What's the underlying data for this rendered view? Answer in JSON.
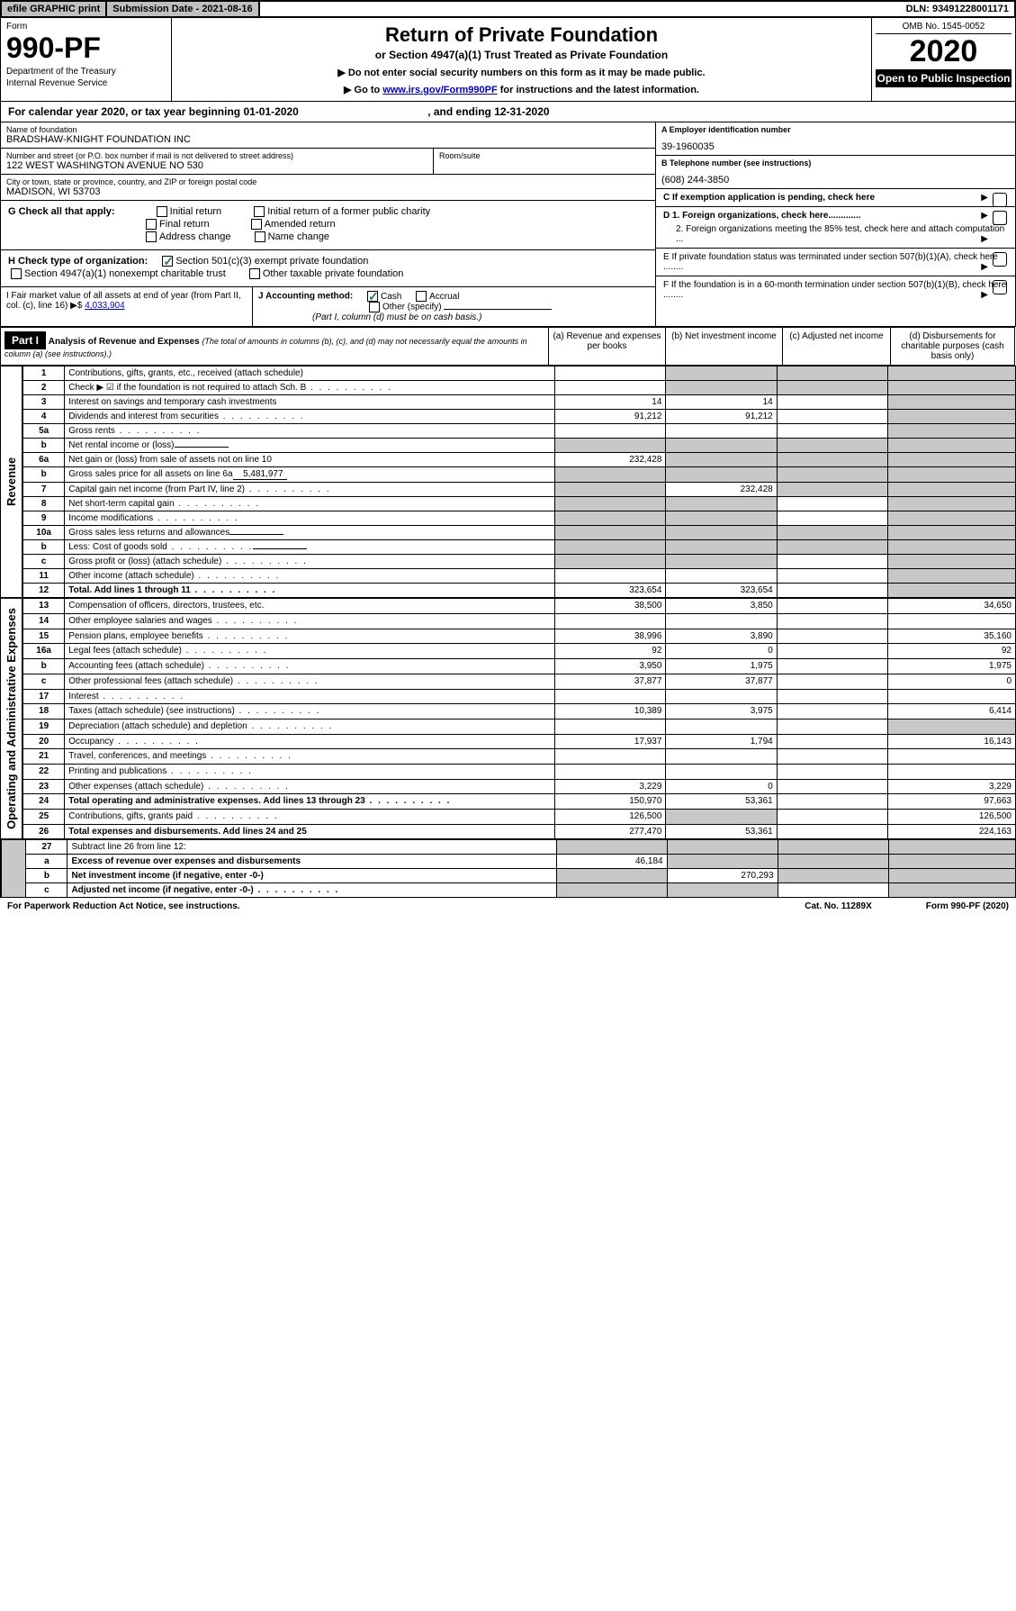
{
  "topbar": {
    "efile": "efile GRAPHIC print",
    "submission": "Submission Date - 2021-08-16",
    "dln": "DLN: 93491228001171"
  },
  "header": {
    "form_word": "Form",
    "form_num": "990-PF",
    "dept1": "Department of the Treasury",
    "dept2": "Internal Revenue Service",
    "title": "Return of Private Foundation",
    "subtitle": "or Section 4947(a)(1) Trust Treated as Private Foundation",
    "note1": "▶ Do not enter social security numbers on this form as it may be made public.",
    "note2_pre": "▶ Go to ",
    "note2_link": "www.irs.gov/Form990PF",
    "note2_post": " for instructions and the latest information.",
    "omb": "OMB No. 1545-0052",
    "year": "2020",
    "open": "Open to Public Inspection"
  },
  "calendar": {
    "pre": "For calendar year 2020, or tax year beginning ",
    "begin": "01-01-2020",
    "mid": " , and ending ",
    "end": "12-31-2020"
  },
  "name": {
    "lbl": "Name of foundation",
    "val": "BRADSHAW-KNIGHT FOUNDATION INC"
  },
  "ein": {
    "lbl": "A Employer identification number",
    "val": "39-1960035"
  },
  "addr": {
    "lbl": "Number and street (or P.O. box number if mail is not delivered to street address)",
    "val": "122 WEST WASHINGTON AVENUE NO 530",
    "room_lbl": "Room/suite"
  },
  "phone": {
    "lbl": "B Telephone number (see instructions)",
    "val": "(608) 244-3850"
  },
  "city": {
    "lbl": "City or town, state or province, country, and ZIP or foreign postal code",
    "val": "MADISON, WI  53703"
  },
  "boxC": "C If exemption application is pending, check here",
  "boxD1": "D 1. Foreign organizations, check here.............",
  "boxD2": "2. Foreign organizations meeting the 85% test, check here and attach computation ...",
  "boxE": "E  If private foundation status was terminated under section 507(b)(1)(A), check here ........",
  "boxF": "F  If the foundation is in a 60-month termination under section 507(b)(1)(B), check here ........",
  "G": {
    "lbl": "G Check all that apply:",
    "opts": [
      "Initial return",
      "Initial return of a former public charity",
      "Final return",
      "Amended return",
      "Address change",
      "Name change"
    ]
  },
  "H": {
    "lbl": "H Check type of organization:",
    "opt1": "Section 501(c)(3) exempt private foundation",
    "opt2": "Section 4947(a)(1) nonexempt charitable trust",
    "opt3": "Other taxable private foundation"
  },
  "I": {
    "lbl": "I Fair market value of all assets at end of year (from Part II, col. (c), line 16)",
    "arrow": "▶$",
    "val": "4,033,904"
  },
  "J": {
    "lbl": "J Accounting method:",
    "cash": "Cash",
    "accrual": "Accrual",
    "other": "Other (specify)",
    "note": "(Part I, column (d) must be on cash basis.)"
  },
  "part1": {
    "label": "Part I",
    "title": "Analysis of Revenue and Expenses",
    "subtitle": "(The total of amounts in columns (b), (c), and (d) may not necessarily equal the amounts in column (a) (see instructions).)",
    "cols": {
      "a": "(a) Revenue and expenses per books",
      "b": "(b) Net investment income",
      "c": "(c) Adjusted net income",
      "d": "(d) Disbursements for charitable purposes (cash basis only)"
    },
    "sidebar_rev": "Revenue",
    "sidebar_exp": "Operating and Administrative Expenses"
  },
  "rows": [
    {
      "n": "1",
      "d": "Contributions, gifts, grants, etc., received (attach schedule)",
      "a": "",
      "b": "",
      "gb": true,
      "gc": true,
      "gd": true
    },
    {
      "n": "2",
      "d": "Check ▶ ☑ if the foundation is not required to attach Sch. B",
      "dots": true,
      "gb": true,
      "gc": true,
      "gd": true
    },
    {
      "n": "3",
      "d": "Interest on savings and temporary cash investments",
      "a": "14",
      "b": "14",
      "gc": false,
      "gd": true
    },
    {
      "n": "4",
      "d": "Dividends and interest from securities",
      "dots": true,
      "a": "91,212",
      "b": "91,212",
      "gd": true
    },
    {
      "n": "5a",
      "d": "Gross rents",
      "dots": true,
      "gd": true
    },
    {
      "n": "b",
      "d": "Net rental income or (loss)",
      "inline": true,
      "ga": true,
      "gb": true,
      "gc": true,
      "gd": true
    },
    {
      "n": "6a",
      "d": "Net gain or (loss) from sale of assets not on line 10",
      "a": "232,428",
      "gb": true,
      "gc": true,
      "gd": true
    },
    {
      "n": "b",
      "d": "Gross sales price for all assets on line 6a",
      "inline": true,
      "inline_val": "5,481,977",
      "ga": true,
      "gb": true,
      "gc": true,
      "gd": true
    },
    {
      "n": "7",
      "d": "Capital gain net income (from Part IV, line 2)",
      "dots": true,
      "ga": true,
      "b": "232,428",
      "gc": true,
      "gd": true
    },
    {
      "n": "8",
      "d": "Net short-term capital gain",
      "dots": true,
      "ga": true,
      "gb": true,
      "gd": true
    },
    {
      "n": "9",
      "d": "Income modifications",
      "dots": true,
      "ga": true,
      "gb": true,
      "gd": true
    },
    {
      "n": "10a",
      "d": "Gross sales less returns and allowances",
      "inline": true,
      "ga": true,
      "gb": true,
      "gc": true,
      "gd": true
    },
    {
      "n": "b",
      "d": "Less: Cost of goods sold",
      "dots": true,
      "inline": true,
      "ga": true,
      "gb": true,
      "gc": true,
      "gd": true
    },
    {
      "n": "c",
      "d": "Gross profit or (loss) (attach schedule)",
      "dots": true,
      "ga": true,
      "gb": true,
      "gd": true
    },
    {
      "n": "11",
      "d": "Other income (attach schedule)",
      "dots": true,
      "gd": true
    },
    {
      "n": "12",
      "d": "Total. Add lines 1 through 11",
      "bold": true,
      "dots": true,
      "a": "323,654",
      "b": "323,654",
      "gd": true
    }
  ],
  "exp_rows": [
    {
      "n": "13",
      "d": "Compensation of officers, directors, trustees, etc.",
      "a": "38,500",
      "b": "3,850",
      "dd": "34,650"
    },
    {
      "n": "14",
      "d": "Other employee salaries and wages",
      "dots": true
    },
    {
      "n": "15",
      "d": "Pension plans, employee benefits",
      "dots": true,
      "a": "38,996",
      "b": "3,890",
      "dd": "35,160"
    },
    {
      "n": "16a",
      "d": "Legal fees (attach schedule)",
      "dots": true,
      "a": "92",
      "b": "0",
      "dd": "92"
    },
    {
      "n": "b",
      "d": "Accounting fees (attach schedule)",
      "dots": true,
      "a": "3,950",
      "b": "1,975",
      "dd": "1,975"
    },
    {
      "n": "c",
      "d": "Other professional fees (attach schedule)",
      "dots": true,
      "a": "37,877",
      "b": "37,877",
      "dd": "0"
    },
    {
      "n": "17",
      "d": "Interest",
      "dots": true
    },
    {
      "n": "18",
      "d": "Taxes (attach schedule) (see instructions)",
      "dots": true,
      "a": "10,389",
      "b": "3,975",
      "dd": "6,414"
    },
    {
      "n": "19",
      "d": "Depreciation (attach schedule) and depletion",
      "dots": true,
      "gd": true
    },
    {
      "n": "20",
      "d": "Occupancy",
      "dots": true,
      "a": "17,937",
      "b": "1,794",
      "dd": "16,143"
    },
    {
      "n": "21",
      "d": "Travel, conferences, and meetings",
      "dots": true
    },
    {
      "n": "22",
      "d": "Printing and publications",
      "dots": true
    },
    {
      "n": "23",
      "d": "Other expenses (attach schedule)",
      "dots": true,
      "a": "3,229",
      "b": "0",
      "dd": "3,229"
    },
    {
      "n": "24",
      "d": "Total operating and administrative expenses. Add lines 13 through 23",
      "bold": true,
      "dots": true,
      "a": "150,970",
      "b": "53,361",
      "dd": "97,663"
    },
    {
      "n": "25",
      "d": "Contributions, gifts, grants paid",
      "dots": true,
      "a": "126,500",
      "gb": true,
      "dd": "126,500"
    },
    {
      "n": "26",
      "d": "Total expenses and disbursements. Add lines 24 and 25",
      "bold": true,
      "a": "277,470",
      "b": "53,361",
      "dd": "224,163"
    }
  ],
  "final_rows": [
    {
      "n": "27",
      "d": "Subtract line 26 from line 12:",
      "ga": true,
      "gb": true,
      "gc": true,
      "gd": true
    },
    {
      "n": "a",
      "d": "Excess of revenue over expenses and disbursements",
      "bold": true,
      "a": "46,184",
      "gb": true,
      "gc": true,
      "gd": true
    },
    {
      "n": "b",
      "d": "Net investment income (if negative, enter -0-)",
      "bold": true,
      "ga": true,
      "b": "270,293",
      "gc": true,
      "gd": true
    },
    {
      "n": "c",
      "d": "Adjusted net income (if negative, enter -0-)",
      "bold": true,
      "dots": true,
      "ga": true,
      "gb": true,
      "gd": true
    }
  ],
  "footer": {
    "left": "For Paperwork Reduction Act Notice, see instructions.",
    "mid": "Cat. No. 11289X",
    "right": "Form 990-PF (2020)"
  }
}
